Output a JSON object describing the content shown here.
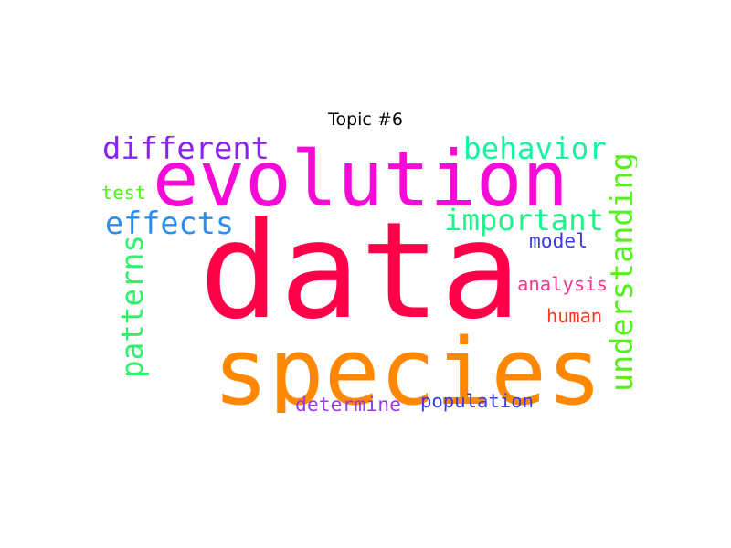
{
  "title": "Topic #6",
  "words": [
    {
      "text": "data",
      "color": "#ff0048",
      "rotated": false
    },
    {
      "text": "evolution",
      "color": "#f70ad8",
      "rotated": false
    },
    {
      "text": "species",
      "color": "#ff8800",
      "rotated": false
    },
    {
      "text": "different",
      "color": "#8a22f2",
      "rotated": false
    },
    {
      "text": "behavior",
      "color": "#16f2a0",
      "rotated": false
    },
    {
      "text": "effects",
      "color": "#2a8df0",
      "rotated": false
    },
    {
      "text": "important",
      "color": "#1cf58c",
      "rotated": false
    },
    {
      "text": "patterns",
      "color": "#2ff26a",
      "rotated": true
    },
    {
      "text": "understanding",
      "color": "#55f01e",
      "rotated": true
    },
    {
      "text": "test",
      "color": "#4ef51b",
      "rotated": false
    },
    {
      "text": "model",
      "color": "#3a3ae6",
      "rotated": false
    },
    {
      "text": "analysis",
      "color": "#f7358c",
      "rotated": false
    },
    {
      "text": "human",
      "color": "#f23a1e",
      "rotated": false
    },
    {
      "text": "determine",
      "color": "#9a3af0",
      "rotated": false
    },
    {
      "text": "population",
      "color": "#3a3ae6",
      "rotated": false
    }
  ]
}
